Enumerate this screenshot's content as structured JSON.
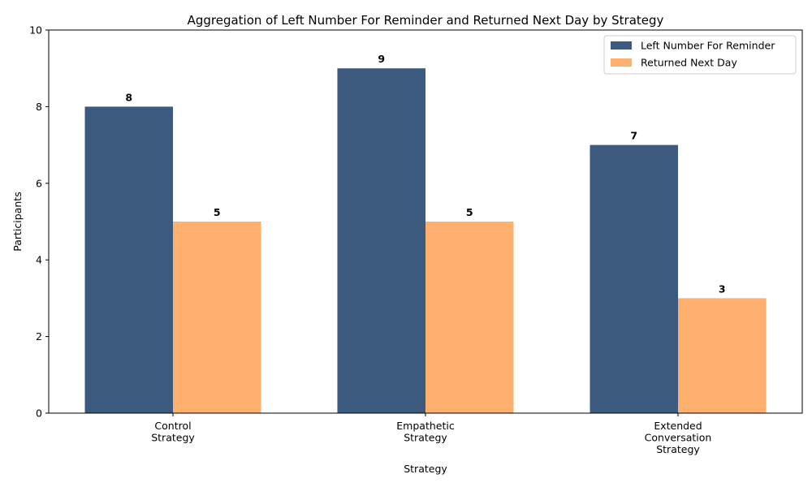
{
  "chart_data": {
    "type": "bar",
    "title": "Aggregation of Left Number For Reminder and Returned Next Day by Strategy",
    "xlabel": "Strategy",
    "ylabel": "Participants",
    "categories": [
      [
        "Control",
        "Strategy"
      ],
      [
        "Empathetic",
        "Strategy"
      ],
      [
        "Extended",
        "Conversation",
        "Strategy"
      ]
    ],
    "series": [
      {
        "name": "Left Number For Reminder",
        "values": [
          8,
          9,
          7
        ],
        "color": "#3b5a7d"
      },
      {
        "name": "Returned Next Day",
        "values": [
          5,
          5,
          3
        ],
        "color": "#ffb06e"
      }
    ],
    "ylim": [
      0,
      10
    ],
    "yticks": [
      "0",
      "2",
      "4",
      "6",
      "8",
      "10"
    ],
    "grid": false,
    "legend": "top-right"
  }
}
